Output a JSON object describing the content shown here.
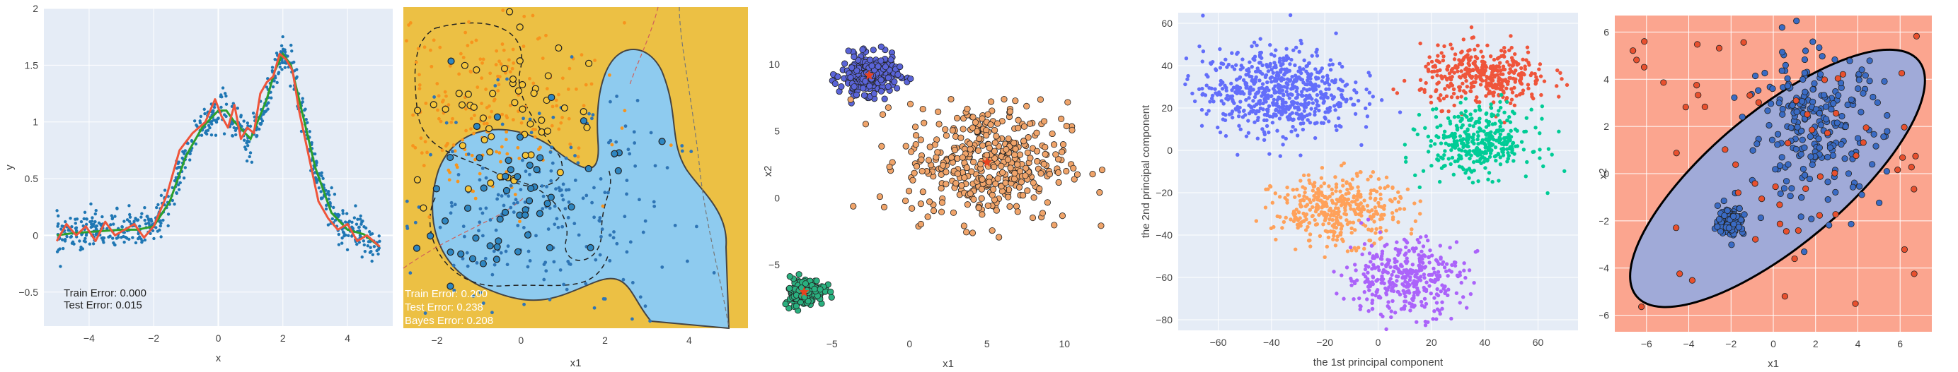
{
  "colors": {
    "plot_bg": "#e5ecf6",
    "grid": "#ffffff",
    "scatter_blue": "#1f77b4",
    "fit_red": "#ef553b",
    "fit_green": "#2ca02c",
    "region_gold": "#ecc044",
    "region_blue": "#8ecbef",
    "pca_blue": "#636efa",
    "pca_red": "#ef553b",
    "pca_green": "#00cc96",
    "pca_orange": "#ffa15a",
    "pca_purple": "#ab63fa",
    "salmon": "#fba58f",
    "ellipse_fill": "#a0aad8"
  },
  "chart_data": [
    {
      "type": "scatter",
      "xlabel": "x",
      "ylabel": "y",
      "xlim": [
        -5.4,
        5.4
      ],
      "ylim": [
        -0.8,
        2.0
      ],
      "xticks": [
        -4,
        -2,
        0,
        2,
        4
      ],
      "yticks": [
        -0.5,
        0,
        0.5,
        1,
        1.5,
        2
      ],
      "grid": true,
      "annotations": [
        "Train Error: 0.000",
        "Test Error: 0.015"
      ],
      "series": [
        {
          "mode": "markers",
          "color": "blue",
          "x_range": [
            -5,
            5
          ]
        },
        {
          "mode": "line",
          "color": "green",
          "x": [
            -5,
            -4.5,
            -4,
            -3.5,
            -3,
            -2.5,
            -2,
            -1.5,
            -1,
            -0.5,
            0,
            0.25,
            0.5,
            1,
            1.5,
            1.75,
            2,
            2.25,
            2.5,
            3,
            3.5,
            4,
            4.5,
            5
          ],
          "y": [
            0,
            0.02,
            0.03,
            0.04,
            0.05,
            0.05,
            0.08,
            0.3,
            0.7,
            0.95,
            1.1,
            1.1,
            1.0,
            0.85,
            1.2,
            1.45,
            1.6,
            1.5,
            1.2,
            0.6,
            0.2,
            0.05,
            0.01,
            -0.1
          ]
        },
        {
          "mode": "line",
          "color": "red",
          "x": [
            -5,
            -4.7,
            -4.4,
            -4.1,
            -3.8,
            -3.5,
            -3.2,
            -2.9,
            -2.6,
            -2.3,
            -2,
            -1.6,
            -1.2,
            -0.8,
            -0.4,
            -0.1,
            0.1,
            0.3,
            0.5,
            0.7,
            0.9,
            1.1,
            1.3,
            1.5,
            1.7,
            1.9,
            2.1,
            2.3,
            2.5,
            2.8,
            3.1,
            3.4,
            3.7,
            4.0,
            4.3,
            4.6,
            5
          ],
          "y": [
            -0.05,
            0.1,
            0.0,
            0.08,
            -0.05,
            0.12,
            0.0,
            0.05,
            0.1,
            -0.02,
            0.08,
            0.35,
            0.75,
            0.9,
            1.0,
            1.2,
            1.05,
            0.95,
            1.15,
            0.85,
            0.95,
            0.9,
            1.25,
            1.35,
            1.4,
            1.6,
            1.55,
            1.45,
            1.1,
            0.7,
            0.3,
            0.15,
            0.05,
            0.1,
            -0.05,
            0.0,
            -0.1
          ]
        }
      ]
    },
    {
      "type": "scatter",
      "xlabel": "x1",
      "ylabel": "",
      "xlim": [
        -2.8,
        5.4
      ],
      "ylim": [
        -3.2,
        5.2
      ],
      "xticks": [
        -2,
        0,
        2,
        4
      ],
      "annotations": [
        "Train Error: 0.200",
        "Test Error: 0.238",
        "Bayes Error: 0.208"
      ]
    },
    {
      "type": "scatter",
      "xlabel": "x1",
      "ylabel": "x2",
      "xlim": [
        -8,
        13
      ],
      "ylim": [
        -10,
        14
      ],
      "xticks": [
        -5,
        0,
        5,
        10
      ],
      "yticks": [
        -5,
        0,
        5,
        10
      ],
      "grid": false,
      "series": [
        {
          "color": "#5a64d8",
          "center": [
            -2.6,
            9.2
          ],
          "spread": 0.9
        },
        {
          "color": "#f0a46a",
          "center": [
            5.0,
            2.7
          ],
          "spread": 2.6
        },
        {
          "color": "#2ab07f",
          "center": [
            -6.8,
            -7.0
          ],
          "spread": 0.65
        }
      ]
    },
    {
      "type": "scatter",
      "xlabel": "the 1st principal component",
      "ylabel": "the 2nd principal component",
      "xlim": [
        -75,
        75
      ],
      "ylim": [
        -85,
        65
      ],
      "xticks": [
        -60,
        -40,
        -20,
        0,
        20,
        40,
        60
      ],
      "yticks": [
        -80,
        -60,
        -40,
        -20,
        0,
        20,
        40,
        60
      ],
      "grid": true
    },
    {
      "type": "scatter",
      "xlabel": "x1",
      "ylabel": "x2",
      "xlim": [
        -7.5,
        7.5
      ],
      "ylim": [
        -6.7,
        6.7
      ],
      "xticks": [
        -6,
        -4,
        -2,
        0,
        2,
        4,
        6
      ],
      "yticks": [
        -6,
        -4,
        -2,
        0,
        2,
        4,
        6
      ],
      "grid": true
    }
  ]
}
